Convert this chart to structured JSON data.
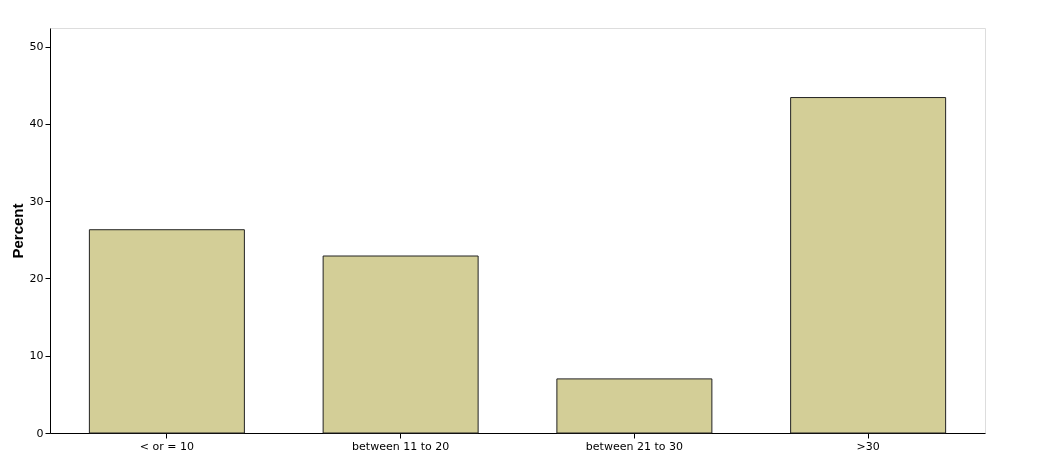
{
  "chart_data": {
    "type": "bar",
    "ylabel": "Percent",
    "categories": [
      "< or = 10",
      "between 11 to 20",
      "between 21 to 30",
      ">30"
    ],
    "values": [
      26.3,
      22.9,
      7.0,
      43.4
    ],
    "color": "#d3ce97",
    "ylim": [
      0,
      52.4
    ],
    "yticks": [
      0,
      10,
      20,
      30,
      40,
      50
    ],
    "grid": false
  }
}
